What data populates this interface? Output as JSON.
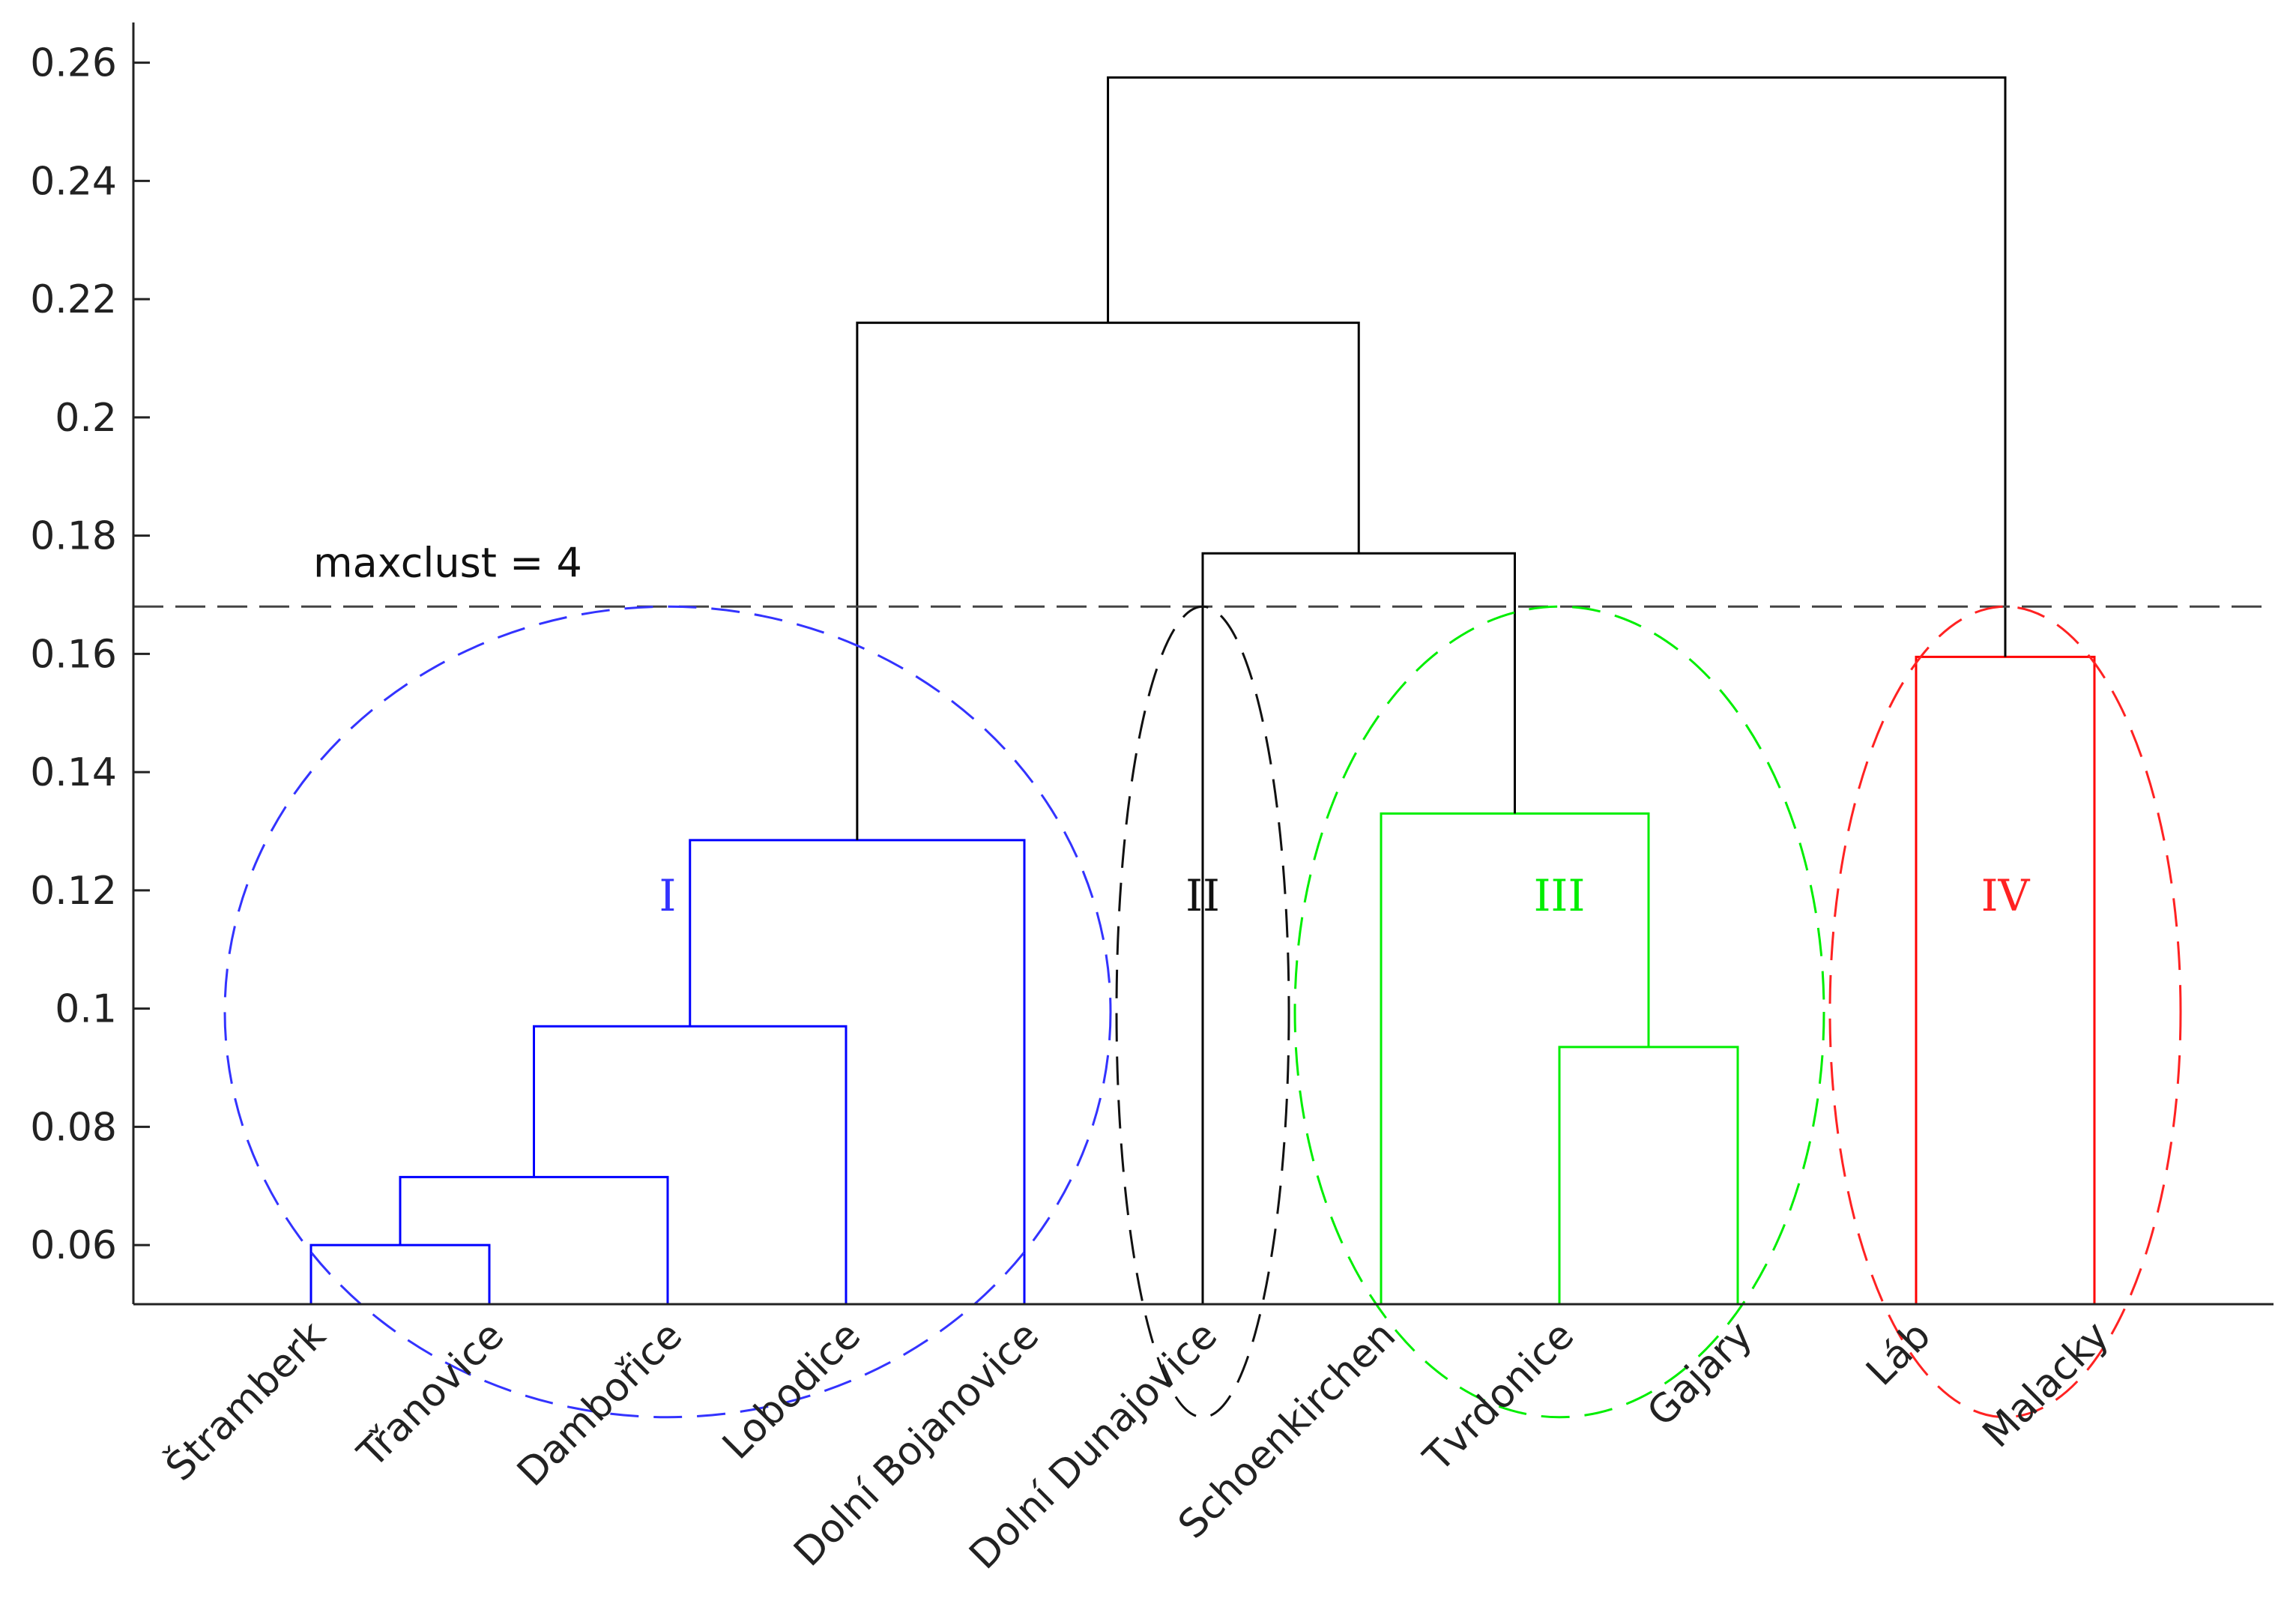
{
  "chart_data": {
    "type": "dendrogram",
    "title": "",
    "xlabel": "",
    "ylabel": "",
    "ylim": [
      0.05,
      0.2668
    ],
    "yticks": [
      0.06,
      0.08,
      0.1,
      0.12,
      0.14,
      0.16,
      0.18,
      0.2,
      0.22,
      0.24,
      0.26
    ],
    "ytick_labels": [
      "0.06",
      "0.08",
      "0.1",
      "0.12",
      "0.14",
      "0.16",
      "0.18",
      "0.2",
      "0.22",
      "0.24",
      "0.26"
    ],
    "leaves": [
      "Štramberk",
      "Třanovice",
      "Dambořice",
      "Lobodice",
      "Dolní Bojanovice",
      "Dolní Dunajovice",
      "Schoenkirchen",
      "Tvrdonice",
      "Gajary",
      "Láb",
      "Malacky"
    ],
    "merges": [
      {
        "left": 0,
        "right": 1,
        "height": 0.06,
        "color": "#0000ff"
      },
      {
        "left": 11,
        "right": 2,
        "height": 0.0715,
        "color": "#0000ff"
      },
      {
        "left": 12,
        "right": 3,
        "height": 0.097,
        "color": "#0000ff"
      },
      {
        "left": 13,
        "right": 4,
        "height": 0.1285,
        "color": "#0000ff"
      },
      {
        "left": 7,
        "right": 8,
        "height": 0.0935,
        "color": "#00ee00"
      },
      {
        "left": 6,
        "right": 15,
        "height": 0.133,
        "color": "#00ee00"
      },
      {
        "left": 9,
        "right": 10,
        "height": 0.1595,
        "color": "#ff0000"
      },
      {
        "left": 5,
        "right": 16,
        "height": 0.177,
        "color": "#000000"
      },
      {
        "left": 14,
        "right": 18,
        "height": 0.216,
        "color": "#000000"
      },
      {
        "left": 19,
        "right": 17,
        "height": 0.2575,
        "color": "#000000"
      }
    ],
    "threshold": {
      "value": 0.168,
      "label": "maxclust = 4"
    },
    "clusters": [
      {
        "label": "I",
        "color": "#3333ff",
        "leaves": [
          0,
          4
        ]
      },
      {
        "label": "II",
        "color": "#111111",
        "leaves": [
          5,
          5
        ]
      },
      {
        "label": "III",
        "color": "#00ee00",
        "leaves": [
          6,
          8
        ]
      },
      {
        "label": "IV",
        "color": "#ff2222",
        "leaves": [
          9,
          10
        ]
      }
    ]
  }
}
